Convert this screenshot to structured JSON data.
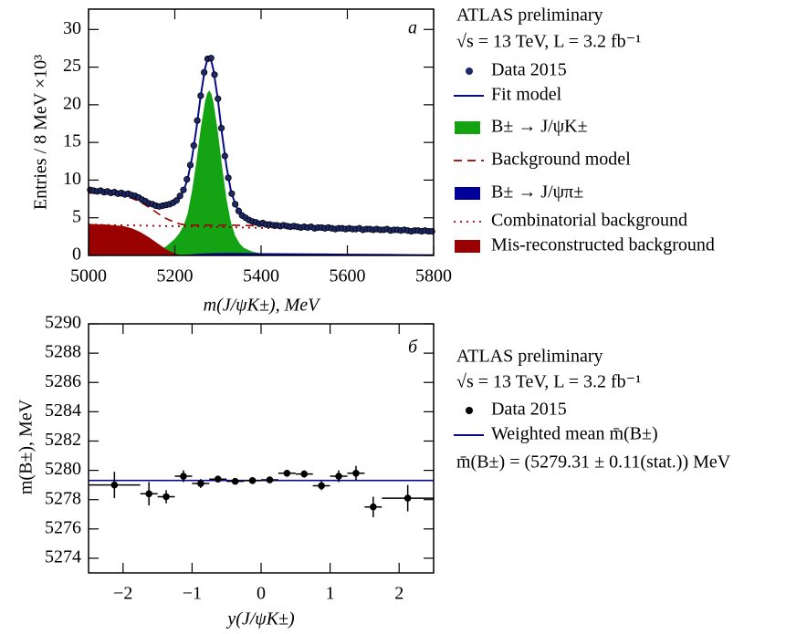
{
  "chart_data": [
    {
      "type": "line",
      "panel_label": "а",
      "legend_title": [
        "ATLAS preliminary",
        "√s = 13 TeV, L = 3.2 fb⁻¹"
      ],
      "xlabel": "m(J/ψK±), MeV",
      "ylabel": "Entries / 8 MeV ×10³",
      "xlim": [
        5000,
        5800
      ],
      "ylim": [
        0,
        32.7
      ],
      "xticks": [
        5000,
        5200,
        5400,
        5600,
        5800
      ],
      "yticks": [
        0,
        5,
        10,
        15,
        20,
        25,
        30
      ],
      "series": [
        {
          "name": "Data 2015",
          "style": "points",
          "color": "#1c2a6b",
          "x": [
            5004,
            5012,
            5020,
            5028,
            5036,
            5044,
            5052,
            5060,
            5068,
            5076,
            5084,
            5092,
            5100,
            5108,
            5116,
            5124,
            5132,
            5140,
            5148,
            5156,
            5164,
            5172,
            5180,
            5188,
            5196,
            5204,
            5212,
            5220,
            5228,
            5236,
            5244,
            5252,
            5260,
            5268,
            5276,
            5284,
            5292,
            5300,
            5308,
            5316,
            5324,
            5332,
            5340,
            5348,
            5356,
            5364,
            5372,
            5380,
            5388,
            5396,
            5404,
            5412,
            5420,
            5428,
            5436,
            5444,
            5452,
            5460,
            5468,
            5476,
            5484,
            5492,
            5500,
            5508,
            5516,
            5524,
            5532,
            5540,
            5548,
            5556,
            5564,
            5572,
            5580,
            5588,
            5596,
            5604,
            5612,
            5620,
            5628,
            5636,
            5644,
            5652,
            5660,
            5668,
            5676,
            5684,
            5692,
            5700,
            5708,
            5716,
            5724,
            5732,
            5740,
            5748,
            5756,
            5764,
            5772,
            5780,
            5788,
            5796
          ],
          "values": [
            8.7,
            8.6,
            8.5,
            8.6,
            8.4,
            8.5,
            8.3,
            8.4,
            8.2,
            8.3,
            8.1,
            8.2,
            8.0,
            7.9,
            7.7,
            7.4,
            7.2,
            6.9,
            6.8,
            6.6,
            6.5,
            6.6,
            6.7,
            6.8,
            7.0,
            7.3,
            7.9,
            8.7,
            10.1,
            12.0,
            14.6,
            17.9,
            21.2,
            24.3,
            26.1,
            26.2,
            24.0,
            20.8,
            16.9,
            13.2,
            10.3,
            8.2,
            6.8,
            5.9,
            5.3,
            5.0,
            4.7,
            4.5,
            4.4,
            4.2,
            4.3,
            4.1,
            4.1,
            4.0,
            4.0,
            3.9,
            4.0,
            3.9,
            3.8,
            3.9,
            3.8,
            3.7,
            3.8,
            3.7,
            3.8,
            3.6,
            3.7,
            3.7,
            3.6,
            3.7,
            3.6,
            3.5,
            3.6,
            3.6,
            3.5,
            3.6,
            3.5,
            3.5,
            3.6,
            3.4,
            3.5,
            3.5,
            3.4,
            3.5,
            3.4,
            3.4,
            3.5,
            3.3,
            3.4,
            3.4,
            3.3,
            3.4,
            3.3,
            3.2,
            3.3,
            3.3,
            3.2,
            3.3,
            3.2,
            3.2
          ]
        },
        {
          "name": "Fit model",
          "style": "line",
          "color": "#0a0a8c",
          "x": [
            5000,
            5040,
            5080,
            5100,
            5120,
            5140,
            5160,
            5180,
            5200,
            5210,
            5220,
            5230,
            5240,
            5250,
            5260,
            5270,
            5275,
            5280,
            5285,
            5290,
            5300,
            5310,
            5320,
            5330,
            5340,
            5350,
            5360,
            5380,
            5400,
            5450,
            5500,
            5550,
            5600,
            5650,
            5700,
            5750,
            5800
          ],
          "values": [
            8.6,
            8.4,
            8.2,
            8.0,
            7.6,
            7.0,
            6.6,
            6.6,
            7.0,
            7.6,
            8.5,
            10.2,
            13.0,
            16.8,
            21.2,
            24.8,
            25.9,
            26.2,
            25.7,
            24.5,
            20.6,
            15.9,
            11.7,
            8.6,
            6.8,
            5.7,
            5.1,
            4.5,
            4.2,
            3.95,
            3.8,
            3.72,
            3.65,
            3.57,
            3.49,
            3.41,
            3.33
          ]
        },
        {
          "name": "B± → J/ψK±",
          "style": "area",
          "color": "#13a313",
          "x": [
            5000,
            5040,
            5080,
            5100,
            5120,
            5140,
            5160,
            5180,
            5200,
            5210,
            5220,
            5230,
            5240,
            5250,
            5260,
            5270,
            5275,
            5280,
            5285,
            5290,
            5300,
            5310,
            5320,
            5330,
            5340,
            5350,
            5360,
            5380,
            5400,
            5450,
            5500,
            5550,
            5600,
            5650,
            5700,
            5750,
            5800
          ],
          "values": [
            0,
            0,
            0,
            0,
            0.05,
            0.2,
            0.6,
            1.2,
            2.2,
            2.9,
            3.9,
            5.6,
            8.6,
            12.4,
            16.8,
            20.4,
            21.5,
            21.9,
            21.4,
            20.2,
            16.3,
            11.6,
            7.4,
            4.4,
            2.6,
            1.6,
            1.0,
            0.5,
            0.25,
            0.05,
            0,
            0,
            0,
            0,
            0,
            0,
            0
          ]
        },
        {
          "name": "Background model",
          "style": "dashed",
          "color": "#990000",
          "x": [
            5000,
            5040,
            5080,
            5100,
            5120,
            5140,
            5160,
            5180,
            5200,
            5210,
            5220,
            5230,
            5240,
            5250,
            5260,
            5270,
            5275,
            5280,
            5285,
            5290,
            5300,
            5310,
            5320,
            5330,
            5340,
            5350,
            5360,
            5380,
            5400,
            5450,
            5500,
            5550,
            5600,
            5650,
            5700,
            5750,
            5800
          ],
          "values": [
            8.3,
            8.16,
            7.9,
            7.6,
            7.1,
            6.4,
            5.6,
            4.9,
            4.4,
            4.2,
            4.1,
            4.05,
            4.02,
            4.0,
            4.0,
            4.0,
            4.0,
            4.0,
            4.0,
            4.0,
            4.0,
            4.0,
            4.0,
            4.0,
            4.0,
            3.99,
            3.98,
            3.95,
            3.92,
            3.86,
            3.79,
            3.72,
            3.65,
            3.57,
            3.49,
            3.41,
            3.33
          ]
        },
        {
          "name": "B± → J/ψπ±",
          "style": "area",
          "color": "#000099",
          "x": [
            5000,
            5040,
            5080,
            5100,
            5120,
            5140,
            5160,
            5180,
            5200,
            5210,
            5220,
            5230,
            5240,
            5250,
            5260,
            5270,
            5275,
            5280,
            5285,
            5290,
            5300,
            5310,
            5320,
            5330,
            5340,
            5350,
            5360,
            5380,
            5400,
            5450,
            5500,
            5550,
            5600,
            5650,
            5700,
            5750,
            5800
          ],
          "values": [
            0,
            0,
            0,
            0,
            0,
            0,
            0,
            0,
            0.02,
            0.05,
            0.08,
            0.12,
            0.16,
            0.2,
            0.24,
            0.27,
            0.28,
            0.29,
            0.3,
            0.31,
            0.32,
            0.33,
            0.34,
            0.34,
            0.34,
            0.33,
            0.33,
            0.32,
            0.31,
            0.29,
            0.27,
            0.25,
            0.23,
            0.21,
            0.19,
            0.17,
            0.15
          ]
        },
        {
          "name": "Combinatorial background",
          "style": "dotted",
          "color": "#990000",
          "x": [
            5000,
            5040,
            5080,
            5100,
            5120,
            5140,
            5160,
            5180,
            5200,
            5210,
            5220,
            5230,
            5240,
            5250,
            5260,
            5270,
            5275,
            5280,
            5285,
            5290,
            5300,
            5310,
            5320,
            5330,
            5340,
            5350,
            5360,
            5380,
            5400,
            5450,
            5500,
            5550,
            5600,
            5650,
            5700,
            5750,
            5800
          ],
          "values": [
            4.1,
            4.06,
            4.01,
            3.99,
            3.97,
            3.94,
            3.92,
            3.9,
            3.88,
            3.86,
            3.85,
            3.84,
            3.83,
            3.82,
            3.81,
            3.8,
            3.79,
            3.79,
            3.78,
            3.77,
            3.76,
            3.75,
            3.74,
            3.73,
            3.72,
            3.71,
            3.7,
            3.67,
            3.65,
            3.59,
            3.54,
            3.48,
            3.43,
            3.37,
            3.31,
            3.26,
            3.2
          ]
        },
        {
          "name": "Mis-reconstructed background",
          "style": "area",
          "color": "#990000",
          "x": [
            5000,
            5040,
            5080,
            5100,
            5120,
            5140,
            5160,
            5180,
            5200,
            5210,
            5220,
            5230,
            5240,
            5250,
            5260,
            5270,
            5275,
            5280,
            5285,
            5290,
            5300,
            5310,
            5320,
            5330,
            5340,
            5350,
            5360,
            5380,
            5400,
            5450,
            5500,
            5550,
            5600,
            5650,
            5700,
            5750,
            5800
          ],
          "values": [
            4.2,
            4.1,
            3.9,
            3.6,
            3.1,
            2.4,
            1.6,
            0.8,
            0.25,
            0.1,
            0,
            0,
            0,
            0,
            0,
            0,
            0,
            0,
            0,
            0,
            0,
            0,
            0,
            0,
            0,
            0,
            0,
            0,
            0,
            0,
            0,
            0,
            0,
            0,
            0,
            0,
            0
          ]
        }
      ]
    },
    {
      "type": "scatter",
      "panel_label": "б",
      "legend_title": [
        "ATLAS preliminary",
        "√s = 13 TeV, L = 3.2 fb⁻¹"
      ],
      "note": "m̄(B±) = (5279.31 ± 0.11(stat.)) MeV",
      "xlabel": "y(J/ψK±)",
      "ylabel": "m(B±), MeV",
      "xlim": [
        -2.5,
        2.5
      ],
      "ylim": [
        5273,
        5290
      ],
      "xticks": [
        {
          "value": -2,
          "label": "−2"
        },
        {
          "value": -1,
          "label": "−1"
        },
        0,
        1,
        2
      ],
      "yticks": [
        5274,
        5276,
        5278,
        5280,
        5282,
        5284,
        5286,
        5288,
        5290
      ],
      "series": [
        {
          "name": "Data 2015",
          "style": "errorpoints",
          "color": "#000000",
          "x": [
            -2.125,
            -1.625,
            -1.375,
            -1.125,
            -0.875,
            -0.625,
            -0.375,
            -0.125,
            0.125,
            0.375,
            0.625,
            0.875,
            1.125,
            1.375,
            1.625,
            2.125
          ],
          "xerr": [
            0.375,
            0.125,
            0.125,
            0.125,
            0.125,
            0.125,
            0.125,
            0.125,
            0.125,
            0.125,
            0.125,
            0.125,
            0.125,
            0.125,
            0.125,
            0.375
          ],
          "values": [
            5279.0,
            5278.4,
            5278.2,
            5279.6,
            5279.1,
            5279.4,
            5279.25,
            5279.3,
            5279.35,
            5279.8,
            5279.75,
            5278.95,
            5279.6,
            5279.8,
            5277.5,
            5278.1
          ],
          "yerr": [
            0.9,
            0.8,
            0.45,
            0.4,
            0.3,
            0.2,
            0.2,
            0.2,
            0.2,
            0.2,
            0.25,
            0.3,
            0.4,
            0.5,
            0.7,
            0.9
          ]
        },
        {
          "name": "Weighted mean m̄(B±)",
          "style": "hline",
          "color": "#0a0a8c",
          "values": [
            5279.31
          ]
        }
      ]
    }
  ]
}
